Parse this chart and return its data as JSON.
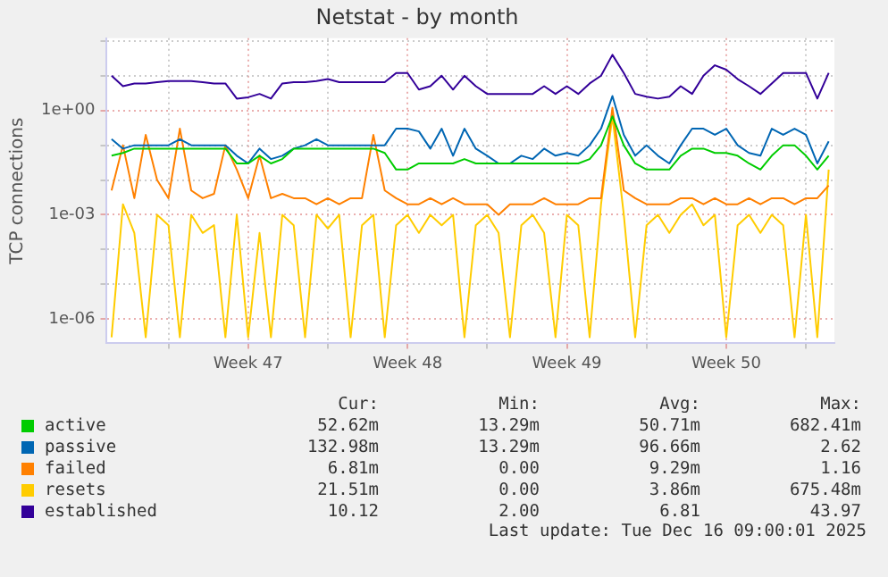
{
  "chart_data": {
    "type": "line",
    "title": "Netstat - by month",
    "ylabel": "TCP connections",
    "log": "y",
    "grid": true,
    "legend": "bottom",
    "marker": "none",
    "line_style": "solid",
    "x": [
      "2025-11-14T12:00",
      "2025-11-15T00:00",
      "2025-11-15T12:00",
      "2025-11-16T00:00",
      "2025-11-16T12:00",
      "2025-11-17T00:00",
      "2025-11-17T12:00",
      "2025-11-18T00:00",
      "2025-11-18T12:00",
      "2025-11-19T00:00",
      "2025-11-19T12:00",
      "2025-11-20T00:00",
      "2025-11-20T12:00",
      "2025-11-21T00:00",
      "2025-11-21T12:00",
      "2025-11-22T00:00",
      "2025-11-22T12:00",
      "2025-11-23T00:00",
      "2025-11-23T12:00",
      "2025-11-24T00:00",
      "2025-11-24T12:00",
      "2025-11-25T00:00",
      "2025-11-25T12:00",
      "2025-11-26T00:00",
      "2025-11-26T12:00",
      "2025-11-27T00:00",
      "2025-11-27T12:00",
      "2025-11-28T00:00",
      "2025-11-28T12:00",
      "2025-11-29T00:00",
      "2025-11-29T12:00",
      "2025-11-30T00:00",
      "2025-11-30T12:00",
      "2025-12-01T00:00",
      "2025-12-01T12:00",
      "2025-12-02T00:00",
      "2025-12-02T12:00",
      "2025-12-03T00:00",
      "2025-12-03T12:00",
      "2025-12-04T00:00",
      "2025-12-04T12:00",
      "2025-12-05T00:00",
      "2025-12-05T12:00",
      "2025-12-06T00:00",
      "2025-12-06T12:00",
      "2025-12-07T00:00",
      "2025-12-07T12:00",
      "2025-12-08T00:00",
      "2025-12-08T12:00",
      "2025-12-09T00:00",
      "2025-12-09T12:00",
      "2025-12-10T00:00",
      "2025-12-10T12:00",
      "2025-12-11T00:00",
      "2025-12-11T12:00",
      "2025-12-12T00:00",
      "2025-12-12T12:00",
      "2025-12-13T00:00",
      "2025-12-13T12:00",
      "2025-12-14T00:00",
      "2025-12-14T12:00",
      "2025-12-15T00:00",
      "2025-12-15T12:00",
      "2025-12-16T00:00"
    ],
    "xlim": [
      "2025-11-14T06:00",
      "2025-12-16T06:00"
    ],
    "xticks": [
      {
        "value": "2025-11-17T00:00",
        "label": null
      },
      {
        "value": "2025-11-20T12:00",
        "label": "Week 47"
      },
      {
        "value": "2025-11-24T00:00",
        "label": null
      },
      {
        "value": "2025-11-27T12:00",
        "label": "Week 48"
      },
      {
        "value": "2025-12-01T00:00",
        "label": null
      },
      {
        "value": "2025-12-04T12:00",
        "label": "Week 49"
      },
      {
        "value": "2025-12-08T00:00",
        "label": null
      },
      {
        "value": "2025-12-11T12:00",
        "label": "Week 50"
      },
      {
        "value": "2025-12-15T00:00",
        "label": null
      }
    ],
    "ylim": [
      2e-07,
      120
    ],
    "yticks": [
      {
        "value": 100,
        "label": null
      },
      {
        "value": 10,
        "label": null
      },
      {
        "value": 1,
        "label": "1e+00"
      },
      {
        "value": 0.1,
        "label": null
      },
      {
        "value": 0.01,
        "label": null
      },
      {
        "value": 0.001,
        "label": "1e-03"
      },
      {
        "value": 0.0001,
        "label": null
      },
      {
        "value": 1e-05,
        "label": null
      },
      {
        "value": 1e-06,
        "label": "1e-06"
      }
    ],
    "series": [
      {
        "name": "active",
        "color": "#00cc00",
        "values": [
          0.05,
          0.06,
          0.08,
          0.08,
          0.08,
          0.08,
          0.08,
          0.08,
          0.08,
          0.08,
          0.08,
          0.03,
          0.03,
          0.05,
          0.03,
          0.04,
          0.08,
          0.08,
          0.08,
          0.08,
          0.08,
          0.08,
          0.08,
          0.08,
          0.06,
          0.02,
          0.02,
          0.03,
          0.03,
          0.03,
          0.03,
          0.04,
          0.03,
          0.03,
          0.03,
          0.03,
          0.03,
          0.03,
          0.03,
          0.03,
          0.03,
          0.03,
          0.04,
          0.1,
          0.68,
          0.1,
          0.03,
          0.02,
          0.02,
          0.02,
          0.05,
          0.08,
          0.08,
          0.06,
          0.06,
          0.05,
          0.03,
          0.02,
          0.05,
          0.1,
          0.1,
          0.05,
          0.02,
          0.05
        ]
      },
      {
        "name": "passive",
        "color": "#0066b3",
        "values": [
          0.15,
          0.08,
          0.1,
          0.1,
          0.1,
          0.1,
          0.15,
          0.1,
          0.1,
          0.1,
          0.1,
          0.05,
          0.03,
          0.08,
          0.04,
          0.05,
          0.08,
          0.1,
          0.15,
          0.1,
          0.1,
          0.1,
          0.1,
          0.1,
          0.1,
          0.3,
          0.3,
          0.25,
          0.08,
          0.3,
          0.05,
          0.3,
          0.08,
          0.05,
          0.03,
          0.03,
          0.05,
          0.04,
          0.08,
          0.05,
          0.06,
          0.05,
          0.1,
          0.3,
          2.6,
          0.2,
          0.05,
          0.1,
          0.05,
          0.03,
          0.1,
          0.3,
          0.3,
          0.2,
          0.3,
          0.1,
          0.06,
          0.05,
          0.3,
          0.2,
          0.3,
          0.2,
          0.03,
          0.13
        ]
      },
      {
        "name": "failed",
        "color": "#ff8000",
        "values": [
          0.005,
          0.1,
          0.003,
          0.2,
          0.01,
          0.003,
          0.3,
          0.005,
          0.003,
          0.004,
          0.1,
          0.02,
          0.003,
          0.05,
          0.003,
          0.004,
          0.003,
          0.003,
          0.002,
          0.003,
          0.002,
          0.003,
          0.003,
          0.2,
          0.005,
          0.003,
          0.002,
          0.002,
          0.003,
          0.002,
          0.003,
          0.002,
          0.002,
          0.002,
          0.001,
          0.002,
          0.002,
          0.002,
          0.003,
          0.002,
          0.002,
          0.002,
          0.003,
          0.003,
          1.2,
          0.005,
          0.003,
          0.002,
          0.002,
          0.002,
          0.003,
          0.003,
          0.002,
          0.003,
          0.002,
          0.002,
          0.003,
          0.002,
          0.003,
          0.003,
          0.002,
          0.003,
          0.003,
          0.007
        ]
      },
      {
        "name": "resets",
        "color": "#ffcc00",
        "values": [
          3e-07,
          0.002,
          0.0003,
          3e-07,
          0.001,
          0.0005,
          3e-07,
          0.001,
          0.0003,
          0.0005,
          3e-07,
          0.001,
          3e-07,
          0.0003,
          3e-07,
          0.001,
          0.0005,
          3e-07,
          0.001,
          0.0004,
          0.001,
          3e-07,
          0.0005,
          0.001,
          3e-07,
          0.0005,
          0.001,
          0.0003,
          0.001,
          0.0005,
          0.001,
          3e-07,
          0.0005,
          0.001,
          0.0003,
          3e-07,
          0.0005,
          0.001,
          0.0003,
          3e-07,
          0.001,
          0.0005,
          3e-07,
          0.002,
          0.68,
          0.001,
          3e-07,
          0.0005,
          0.001,
          0.0003,
          0.001,
          0.002,
          0.0005,
          0.001,
          3e-07,
          0.0005,
          0.001,
          0.0003,
          0.001,
          0.0005,
          3e-07,
          0.001,
          3e-07,
          0.02
        ]
      },
      {
        "name": "established",
        "color": "#330099",
        "values": [
          10,
          5,
          6,
          6,
          6.5,
          7,
          7,
          7,
          6.5,
          6,
          6,
          2.2,
          2.4,
          3,
          2.2,
          6,
          6.5,
          6.5,
          7,
          8,
          6.5,
          6.5,
          6.5,
          6.5,
          6.5,
          12,
          12,
          4,
          5,
          10,
          4,
          10,
          5,
          3,
          3,
          3,
          3,
          3,
          5,
          3,
          5,
          3,
          6,
          10,
          40,
          12,
          3,
          2.5,
          2.2,
          2.5,
          5,
          3,
          10,
          20,
          15,
          8,
          5,
          3,
          6,
          12,
          12,
          12,
          2.2,
          12
        ]
      }
    ],
    "annotations": [
      "Cur:",
      "Min:",
      "Avg:",
      "Max:",
      "52.62m",
      "13.29m",
      "50.71m",
      "682.41m",
      "132.98m",
      "13.29m",
      "96.66m",
      "2.62",
      "6.81m",
      "0.00",
      "9.29m",
      "1.16",
      "21.51m",
      "0.00",
      "3.86m",
      "675.48m",
      "10.12",
      "2.00",
      "6.81",
      "43.97",
      "Last update: Tue Dec 16 09:00:01 2025"
    ]
  }
}
